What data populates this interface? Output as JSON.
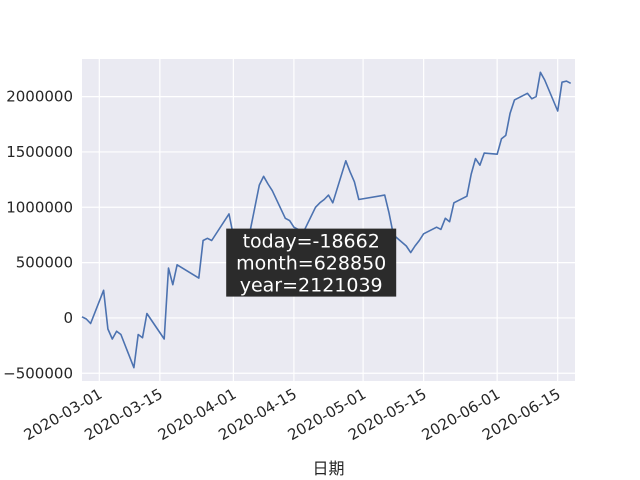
{
  "chart_data": {
    "type": "line",
    "xlabel": "日期",
    "ylabel": "",
    "grid": true,
    "legend": "none",
    "xlim": [
      "2020-02-26",
      "2020-06-19"
    ],
    "ylim": [
      -570000,
      2340000
    ],
    "x_ticks": [
      "2020-03-01",
      "2020-03-15",
      "2020-04-01",
      "2020-04-15",
      "2020-05-01",
      "2020-05-15",
      "2020-06-01",
      "2020-06-15"
    ],
    "y_ticks": [
      {
        "value": -500000,
        "label": "−500000"
      },
      {
        "value": 0,
        "label": "0"
      },
      {
        "value": 500000,
        "label": "500000"
      },
      {
        "value": 1000000,
        "label": "1000000"
      },
      {
        "value": 1500000,
        "label": "1500000"
      },
      {
        "value": 2000000,
        "label": "2000000"
      }
    ],
    "colors": {
      "line": "#4c72b0",
      "plot_bg": "#eaeaf2",
      "grid": "#ffffff",
      "annotation_bg": "#2b2b2b"
    },
    "annotation": {
      "lines": [
        "today=-18662",
        "month=628850",
        "year=2121039"
      ],
      "anchor_date": "2020-04-19",
      "anchor_value": 500000
    },
    "series": [
      {
        "x": [
          "2020-02-26",
          "2020-02-27",
          "2020-02-28",
          "2020-03-02",
          "2020-03-03",
          "2020-03-04",
          "2020-03-05",
          "2020-03-06",
          "2020-03-09",
          "2020-03-10",
          "2020-03-11",
          "2020-03-12",
          "2020-03-16",
          "2020-03-17",
          "2020-03-18",
          "2020-03-19",
          "2020-03-24",
          "2020-03-25",
          "2020-03-26",
          "2020-03-27",
          "2020-03-31",
          "2020-04-01",
          "2020-04-02",
          "2020-04-03",
          "2020-04-07",
          "2020-04-08",
          "2020-04-09",
          "2020-04-10",
          "2020-04-13",
          "2020-04-14",
          "2020-04-15",
          "2020-04-16",
          "2020-04-17",
          "2020-04-20",
          "2020-04-21",
          "2020-04-22",
          "2020-04-23",
          "2020-04-24",
          "2020-04-27",
          "2020-04-28",
          "2020-04-29",
          "2020-04-30",
          "2020-05-06",
          "2020-05-07",
          "2020-05-08",
          "2020-05-11",
          "2020-05-12",
          "2020-05-13",
          "2020-05-14",
          "2020-05-15",
          "2020-05-18",
          "2020-05-19",
          "2020-05-20",
          "2020-05-21",
          "2020-05-22",
          "2020-05-25",
          "2020-05-26",
          "2020-05-27",
          "2020-05-28",
          "2020-05-29",
          "2020-06-01",
          "2020-06-02",
          "2020-06-03",
          "2020-06-04",
          "2020-06-05",
          "2020-06-08",
          "2020-06-09",
          "2020-06-10",
          "2020-06-11",
          "2020-06-12",
          "2020-06-15",
          "2020-06-16",
          "2020-06-17",
          "2020-06-18"
        ],
        "values": [
          10000,
          -10000,
          -50000,
          250000,
          -100000,
          -190000,
          -120000,
          -150000,
          -450000,
          -150000,
          -180000,
          40000,
          -190000,
          450000,
          300000,
          480000,
          360000,
          700000,
          720000,
          700000,
          940000,
          740000,
          450000,
          420000,
          1200000,
          1280000,
          1210000,
          1150000,
          900000,
          880000,
          820000,
          800000,
          760000,
          1000000,
          1040000,
          1070000,
          1110000,
          1040000,
          1420000,
          1320000,
          1230000,
          1070000,
          1110000,
          950000,
          750000,
          650000,
          590000,
          650000,
          700000,
          760000,
          820000,
          800000,
          900000,
          870000,
          1040000,
          1100000,
          1300000,
          1440000,
          1380000,
          1490000,
          1480000,
          1620000,
          1650000,
          1850000,
          1970000,
          2030000,
          1980000,
          2000000,
          2220000,
          2150000,
          1870000,
          2130000,
          2140000,
          2120000
        ]
      }
    ]
  }
}
